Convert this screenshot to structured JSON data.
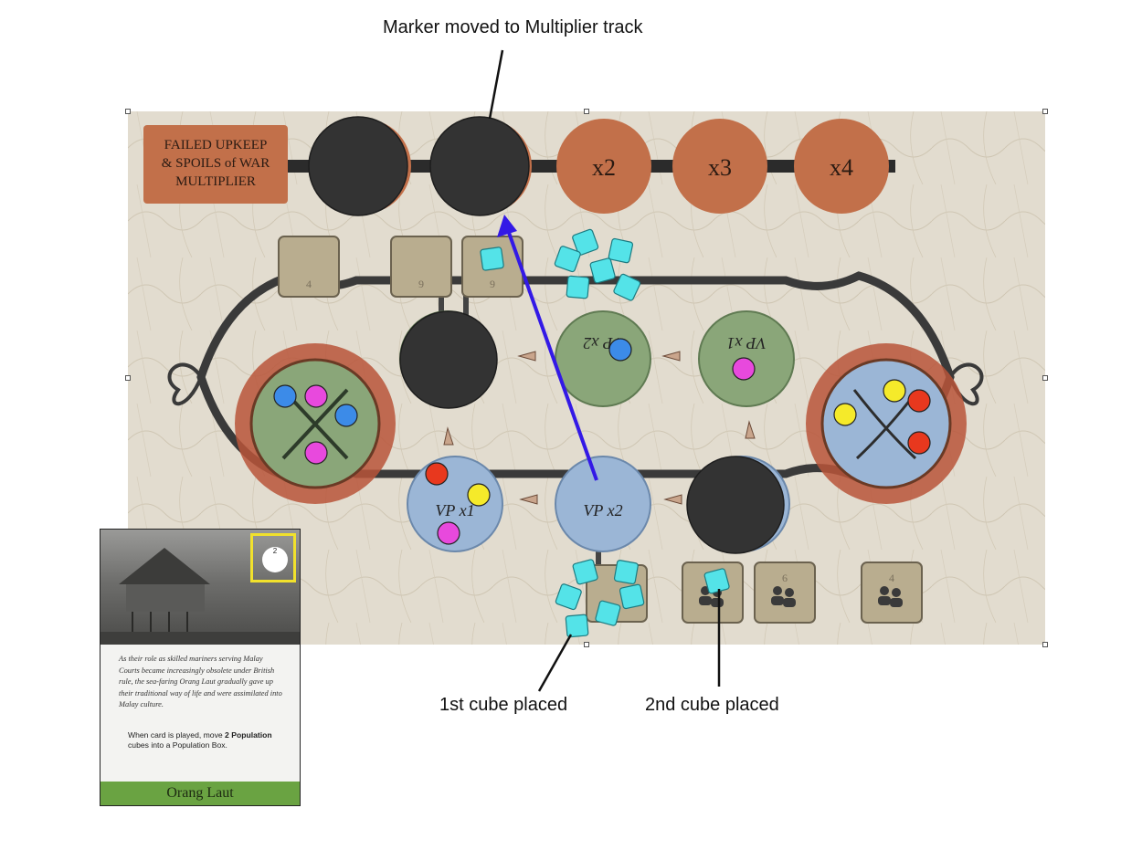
{
  "annotations": {
    "marker_moved": "Marker moved to Multiplier track",
    "first_cube": "1st cube placed",
    "second_cube": "2nd cube placed"
  },
  "board": {
    "track_label_lines": [
      "FAILED UPKEEP",
      "& SPOILS of WAR",
      "MULTIPLIER"
    ],
    "multiplier_spaces": [
      "x2",
      "x3",
      "x4"
    ],
    "top_boxes": [
      "4",
      "9",
      "9"
    ],
    "bottom_boxes": [
      "6",
      "4"
    ],
    "green_nodes": [
      "VP x2",
      "VP x1"
    ],
    "blue_nodes": [
      "VP x1",
      "VP x2"
    ],
    "colors": {
      "orange_track": "#c2704a",
      "green_node": "#8aa679",
      "blue_node": "#9bb6d6",
      "marker": "#333333",
      "cube": "#54e3e8",
      "arrow": "#3319e6",
      "cube_red": "#e8381e",
      "cube_yellow": "#f5ea2a",
      "cube_pink": "#e849dd",
      "cube_blue": "#3c8be8",
      "card_highlight": "#f1e12c",
      "card_banner": "#6aa342"
    }
  },
  "card": {
    "cost": "2",
    "flavor": "As their role as skilled mariners serving Malay Courts became increasingly obsolete under British rule, the sea-faring Orang Laut gradually gave up their traditional way of life and were assimilated into Malay culture.",
    "rule_prefix": "When card is played, move ",
    "rule_bold": "2 Population",
    "rule_suffix": " cubes into a Population Box.",
    "name": "Orang Laut"
  }
}
